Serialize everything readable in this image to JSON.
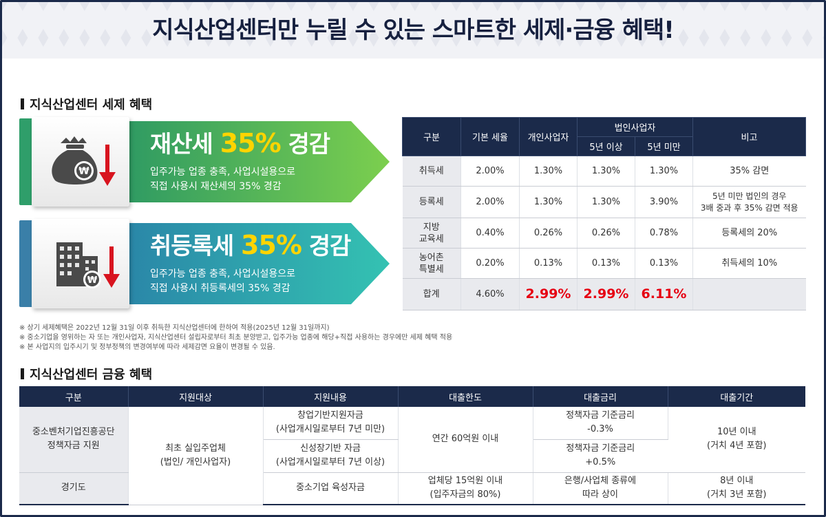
{
  "header": {
    "title": "지식산업센터만 누릴 수 있는 스마트한 세제·금융 혜택!"
  },
  "tax_section": {
    "title": "지식산업센터 세제 혜택"
  },
  "cards": [
    {
      "title_pre": "재산세 ",
      "title_highlight": "35%",
      "title_post": " 경감",
      "desc_line1": "입주가능 업종 충족, 사업시설용으로",
      "desc_line2": "직접 사용시 재산세의 35% 경감",
      "icon": "money-bag-won-icon",
      "strip_color": "#2f9e6a"
    },
    {
      "title_pre": "취등록세 ",
      "title_highlight": "35%",
      "title_post": " 경감",
      "desc_line1": "입주가능 업종 충족, 사업시설용으로",
      "desc_line2": "직접 사용시 취등록세의 35% 경감",
      "icon": "building-won-icon",
      "strip_color": "#3a7fa8"
    }
  ],
  "tax_table": {
    "headers": {
      "category": "구분",
      "base_rate": "기본 세율",
      "individual": "개인사업자",
      "corporate": "법인사업자",
      "over5": "5년 이상",
      "under5": "5년 미만",
      "note": "비고"
    },
    "rows": [
      {
        "name": "취득세",
        "base": "2.00%",
        "individual": "1.30%",
        "over5": "1.30%",
        "under5": "1.30%",
        "note": "35% 감면"
      },
      {
        "name": "등록세",
        "base": "2.00%",
        "individual": "1.30%",
        "over5": "1.30%",
        "under5": "3.90%",
        "note": "5년 미만 법인의 경우\n3배 중과 후 35% 감면 적용"
      },
      {
        "name": "지방\n교육세",
        "base": "0.40%",
        "individual": "0.26%",
        "over5": "0.26%",
        "under5": "0.78%",
        "note": "등록세의 20%"
      },
      {
        "name": "농어촌\n특별세",
        "base": "0.20%",
        "individual": "0.13%",
        "over5": "0.13%",
        "under5": "0.13%",
        "note": "취득세의 10%"
      }
    ],
    "total": {
      "name": "합계",
      "base": "4.60%",
      "individual": "2.99%",
      "over5": "2.99%",
      "under5": "6.11%",
      "note": ""
    }
  },
  "notes": [
    "※ 상기 세제혜택은 2022년 12월 31일 이후 취득한 지식산업센터에 한하여 적용(2025년 12월 31일까지)",
    "※ 중소기업을 영위하는 자 또는 개인사업자, 지식산업센터 설립자로부터 최초 분양받고, 입주가능 업종에 해당+직접 사용하는 경우에만 세제 혜택 적용",
    "※ 본 사업지의 입주시기 및 정부정책의 변경여부에 따라 세제감면 요율이 변경될 수 있음."
  ],
  "finance_section": {
    "title": "지식산업센터 금융 혜택"
  },
  "finance_table": {
    "headers": [
      "구분",
      "지원대상",
      "지원내용",
      "대출한도",
      "대출금리",
      "대출기간"
    ],
    "org1": "중소벤처기업진흥공단\n정책자금 지원",
    "org2": "경기도",
    "target": "최초 실입주업체\n(법인/ 개인사업자)",
    "content1": "창업기반지원자금\n(사업개시일로부터 7년 미만)",
    "content2": "신성장기반 자금\n(사업개시일로부터 7년 이상)",
    "content3": "중소기업 육성자금",
    "limit1": "연간 60억원 이내",
    "limit2": "업체당 15억원 이내\n(입주자금의 80%)",
    "rate1": "정책자금 기준금리\n-0.3%",
    "rate2": "정책자금 기준금리\n+0.5%",
    "rate3": "은행/사업체 종류에\n따라 상이",
    "period1": "10년 이내\n(거치 4년 포함)",
    "period2": "8년 이내\n(거치 3년 포함)"
  },
  "colors": {
    "navy": "#1b2a4a",
    "green": "#4bbf5d",
    "teal": "#2aa7b0",
    "yellow": "#ffd400",
    "red": "#e60012"
  }
}
